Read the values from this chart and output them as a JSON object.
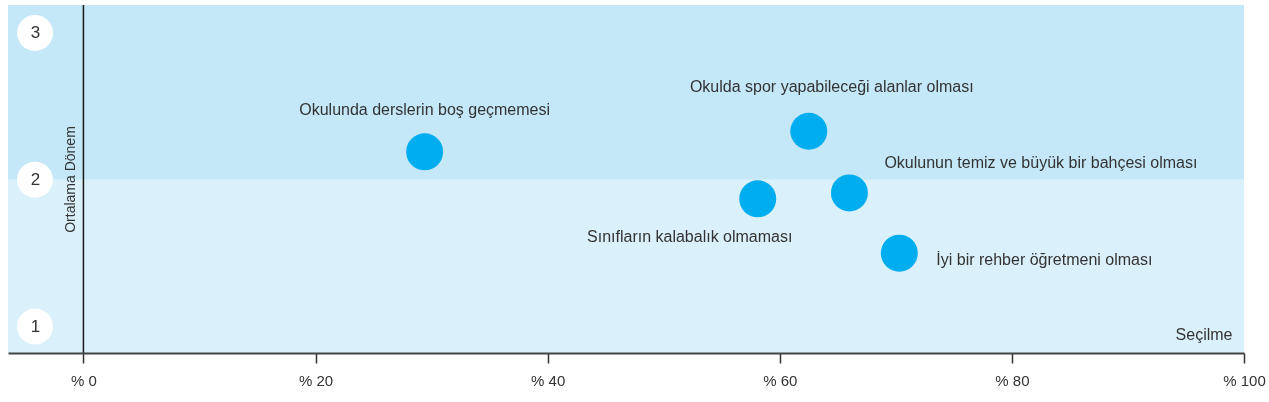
{
  "chart_data": {
    "type": "scatter",
    "xlabel": "Seçilme",
    "ylabel": "Ortalama Dönem",
    "x": [
      29.4,
      62.5,
      66.0,
      58.1,
      70.3
    ],
    "values": [
      2.19,
      2.33,
      1.91,
      1.87,
      1.5
    ],
    "color": "#00aeef",
    "marker": "circle",
    "xlim": [
      -6.5,
      100
    ],
    "xticks": [
      {
        "value": 0,
        "label": "% 0"
      },
      {
        "value": 20,
        "label": "% 20"
      },
      {
        "value": 40,
        "label": "% 40"
      },
      {
        "value": 60,
        "label": "% 60"
      },
      {
        "value": 80,
        "label": "% 80"
      },
      {
        "value": 100,
        "label": "% 100"
      }
    ],
    "ylim": [
      0.82,
      3.19
    ],
    "yticks": [
      1,
      2,
      3
    ],
    "bands": [
      {
        "axis": "y",
        "from": 0.82,
        "to": 2,
        "color": "#daf0fb"
      },
      {
        "axis": "y",
        "from": 2,
        "to": 3.19,
        "color": "#c5e8f8"
      }
    ],
    "ref_lines": [
      {
        "axis": "x",
        "value": 0,
        "color": "#1a1a1a"
      }
    ],
    "annotations": [
      {
        "text": "Okulunda derslerin boş geçmemesi",
        "x": 29.4,
        "y": 2.19
      },
      {
        "text": "Okulda spor yapabileceği alanlar olması",
        "x": 62.5,
        "y": 2.33
      },
      {
        "text": "Okulunun temiz ve büyük bir bahçesi olması",
        "x": 66.0,
        "y": 1.91
      },
      {
        "text": "Sınıfların kalabalık olmaması",
        "x": 58.1,
        "y": 1.87
      },
      {
        "text": "İyi bir rehber öğretmeni olması",
        "x": 70.3,
        "y": 1.5
      }
    ]
  }
}
